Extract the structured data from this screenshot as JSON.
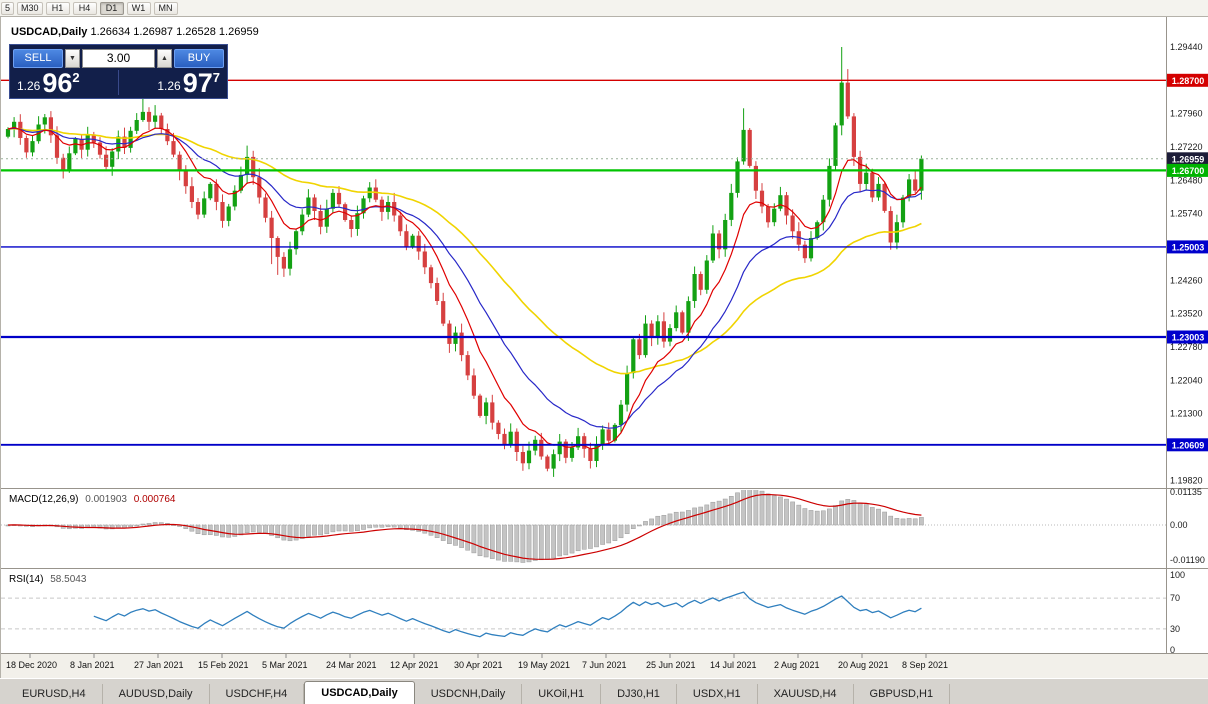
{
  "toolbar": {
    "timeframes": [
      "5",
      "M30",
      "H1",
      "H4",
      "D1",
      "W1",
      "MN"
    ],
    "active_timeframe": "D1"
  },
  "chart": {
    "symbol": "USDCAD,Daily",
    "ohlc_text": "1.26634 1.26987 1.26528 1.26959",
    "ohlc": {
      "open": "1.26634",
      "high": "1.26987",
      "low": "1.26528",
      "close": "1.26959"
    }
  },
  "trade_widget": {
    "sell_label": "SELL",
    "buy_label": "BUY",
    "volume": "3.00",
    "spin_down": "▼",
    "spin_up": "▲",
    "sell_price": {
      "prefix": "1.26",
      "big": "96",
      "sup": "2"
    },
    "buy_price": {
      "prefix": "1.26",
      "big": "97",
      "sup": "7"
    }
  },
  "price_axis": {
    "tick_labels": [
      "1.29440",
      "1.28700",
      "1.27960",
      "1.27220",
      "1.26480",
      "1.25740",
      "1.25000",
      "1.24260",
      "1.23520",
      "1.22780",
      "1.22040",
      "1.21300",
      "1.20560",
      "1.19820"
    ],
    "badges": [
      {
        "label": "1.28700",
        "price": 1.287,
        "color": "#d40000"
      },
      {
        "label": "1.26959",
        "price": 1.26959,
        "color": "#1c1c38"
      },
      {
        "label": "1.26700",
        "price": 1.267,
        "color": "#00b300"
      },
      {
        "label": "1.25003",
        "price": 1.25003,
        "color": "#0000cc"
      },
      {
        "label": "1.23003",
        "price": 1.23003,
        "color": "#0000cc"
      },
      {
        "label": "1.20609",
        "price": 1.20609,
        "color": "#0000cc"
      }
    ]
  },
  "macd": {
    "name": "MACD(12,26,9)",
    "value_main": "0.001903",
    "value_signal": "0.000764",
    "axis_labels": [
      "0.01135",
      "0.00",
      "-0.01190"
    ],
    "params": [
      12,
      26,
      9
    ]
  },
  "rsi": {
    "name": "RSI(14)",
    "value": "58.5043",
    "axis_labels": [
      "100",
      "70",
      "30",
      "0"
    ],
    "levels": [
      70,
      30
    ],
    "period": 14
  },
  "date_axis": {
    "labels": [
      "18 Dec 2020",
      "8 Jan 2021",
      "27 Jan 2021",
      "15 Feb 2021",
      "5 Mar 2021",
      "24 Mar 2021",
      "12 Apr 2021",
      "30 Apr 2021",
      "19 May 2021",
      "7 Jun 2021",
      "25 Jun 2021",
      "14 Jul 2021",
      "2 Aug 2021",
      "20 Aug 2021",
      "8 Sep 2021"
    ]
  },
  "tabs": [
    {
      "label": "EURUSD,H4",
      "active": false
    },
    {
      "label": "AUDUSD,Daily",
      "active": false
    },
    {
      "label": "USDCHF,H4",
      "active": false
    },
    {
      "label": "USDCAD,Daily",
      "active": true
    },
    {
      "label": "USDCNH,Daily",
      "active": false
    },
    {
      "label": "UKOil,H1",
      "active": false
    },
    {
      "label": "DJ30,H1",
      "active": false
    },
    {
      "label": "USDX,H1",
      "active": false
    },
    {
      "label": "XAUUSD,H4",
      "active": false
    },
    {
      "label": "GBPUSD,H1",
      "active": false
    }
  ],
  "chart_data": {
    "type": "candlestick",
    "title": "USDCAD Daily",
    "up_color": "#13a113",
    "down_color": "#d64040",
    "price_range_visible": {
      "top": 1.30106,
      "bottom": 1.1965
    },
    "first_open": 1.2745,
    "closes": [
      1.2762,
      1.2778,
      1.2742,
      1.271,
      1.2735,
      1.2772,
      1.2788,
      1.2748,
      1.2698,
      1.2672,
      1.2708,
      1.274,
      1.2716,
      1.275,
      1.2732,
      1.2705,
      1.2678,
      1.2712,
      1.2745,
      1.272,
      1.2758,
      1.2782,
      1.28,
      1.2778,
      1.2792,
      1.2762,
      1.2735,
      1.2705,
      1.2668,
      1.2635,
      1.26,
      1.2572,
      1.2608,
      1.264,
      1.26,
      1.2558,
      1.259,
      1.2625,
      1.266,
      1.27,
      1.2655,
      1.261,
      1.2565,
      1.252,
      1.2478,
      1.2452,
      1.2495,
      1.2535,
      1.2572,
      1.261,
      1.258,
      1.2545,
      1.2585,
      1.262,
      1.2595,
      1.256,
      1.254,
      1.2575,
      1.2608,
      1.2632,
      1.2605,
      1.2578,
      1.26,
      1.257,
      1.2535,
      1.25,
      1.2525,
      1.249,
      1.2455,
      1.242,
      1.238,
      1.233,
      1.2285,
      1.231,
      1.226,
      1.2215,
      1.217,
      1.2125,
      1.2155,
      1.211,
      1.2085,
      1.206,
      1.209,
      1.2045,
      1.202,
      1.2048,
      1.2072,
      1.2035,
      1.2008,
      1.204,
      1.2068,
      1.2032,
      1.2055,
      1.208,
      1.2052,
      1.2025,
      1.206,
      1.2095,
      1.207,
      1.2105,
      1.215,
      1.222,
      1.2295,
      1.226,
      1.233,
      1.23,
      1.2335,
      1.229,
      1.232,
      1.2355,
      1.231,
      1.238,
      1.244,
      1.2405,
      1.247,
      1.253,
      1.2495,
      1.256,
      1.262,
      1.269,
      1.276,
      1.268,
      1.2625,
      1.259,
      1.2555,
      1.2585,
      1.2615,
      1.257,
      1.2535,
      1.2505,
      1.2475,
      1.252,
      1.2555,
      1.2605,
      1.268,
      1.277,
      1.2865,
      1.279,
      1.27,
      1.264,
      1.2665,
      1.261,
      1.264,
      1.258,
      1.251,
      1.2555,
      1.261,
      1.265,
      1.2625,
      1.2696
    ],
    "wick_overrides": {
      "9": {
        "l": 1.2652
      },
      "22": {
        "h": 1.2832
      },
      "24": {
        "h": 1.2815
      },
      "39": {
        "h": 1.2725
      },
      "43": {
        "l": 1.2462
      },
      "44": {
        "l": 1.2438
      },
      "88": {
        "l": 1.2002
      },
      "120": {
        "h": 1.2808
      },
      "136": {
        "h": 1.2944,
        "l": 1.2748
      },
      "137": {
        "h": 1.2895
      },
      "144": {
        "l": 1.2494
      }
    },
    "moving_averages": [
      {
        "period": 45,
        "color": "#f0d400",
        "width": 1.6
      },
      {
        "period": 20,
        "color": "#2828c8",
        "width": 1.2
      },
      {
        "period": 9,
        "color": "#e00000",
        "width": 1.2
      }
    ],
    "horizontal_lines": [
      {
        "price": 1.287,
        "color": "#d40000",
        "width": 1.4
      },
      {
        "price": 1.26959,
        "color": "#9ab09a",
        "width": 1,
        "dash": "2,3"
      },
      {
        "price": 1.267,
        "color": "#00c400",
        "width": 2.2
      },
      {
        "price": 1.25003,
        "color": "#0000c8",
        "width": 1.4
      },
      {
        "price": 1.23003,
        "color": "#0000c8",
        "width": 2.2
      },
      {
        "price": 1.20609,
        "color": "#0000c8",
        "width": 1.8
      }
    ]
  }
}
